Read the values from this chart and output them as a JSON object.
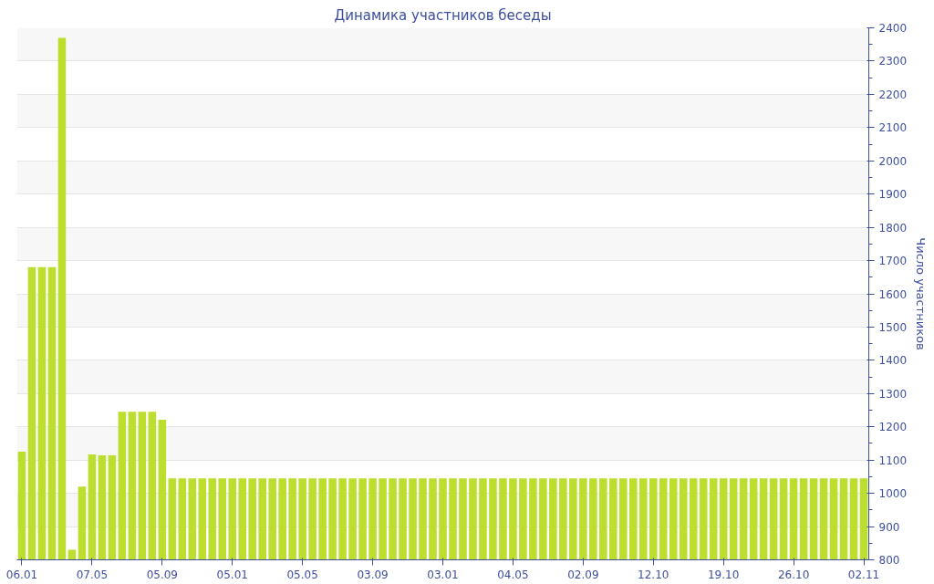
{
  "chart_data": {
    "type": "bar",
    "title": "Динамика участников беседы",
    "ylabel": "Число участников",
    "categories": [
      "06.01",
      null,
      null,
      null,
      null,
      null,
      null,
      "07.05",
      null,
      null,
      null,
      null,
      null,
      null,
      "05.09",
      null,
      null,
      null,
      null,
      null,
      null,
      "05.01",
      null,
      null,
      null,
      null,
      null,
      null,
      "05.05",
      null,
      null,
      null,
      null,
      null,
      null,
      "03.09",
      null,
      null,
      null,
      null,
      null,
      null,
      "03.01",
      null,
      null,
      null,
      null,
      null,
      null,
      "04.05",
      null,
      null,
      null,
      null,
      null,
      null,
      "02.09",
      null,
      null,
      null,
      null,
      null,
      null,
      "12.10",
      null,
      null,
      null,
      null,
      null,
      null,
      "19.10",
      null,
      null,
      null,
      null,
      null,
      null,
      "26.10",
      null,
      null,
      null,
      null,
      null,
      null,
      "02.11"
    ],
    "values": [
      1125,
      1680,
      1680,
      1680,
      2370,
      830,
      1020,
      1117,
      1114,
      1114,
      1245,
      1245,
      1245,
      1245,
      1221,
      1045,
      1045,
      1045,
      1045,
      1045,
      1045,
      1045,
      1045,
      1045,
      1045,
      1045,
      1045,
      1045,
      1045,
      1045,
      1045,
      1045,
      1045,
      1045,
      1045,
      1045,
      1045,
      1045,
      1045,
      1045,
      1045,
      1045,
      1045,
      1045,
      1045,
      1045,
      1045,
      1045,
      1045,
      1045,
      1045,
      1045,
      1045,
      1045,
      1045,
      1045,
      1045,
      1045,
      1045,
      1045,
      1045,
      1045,
      1045,
      1045,
      1045,
      1045,
      1045,
      1045,
      1045,
      1045,
      1045,
      1045,
      1045,
      1045,
      1045,
      1045,
      1045,
      1045,
      1045,
      1045,
      1045,
      1045,
      1045,
      1045,
      1045
    ],
    "color": "#bcdf2f",
    "ylim": [
      800,
      2400
    ],
    "yticks": [
      800,
      900,
      1000,
      1100,
      1200,
      1300,
      1400,
      1500,
      1600,
      1700,
      1800,
      1900,
      2000,
      2100,
      2200,
      2300,
      2400
    ],
    "grid": "y"
  }
}
